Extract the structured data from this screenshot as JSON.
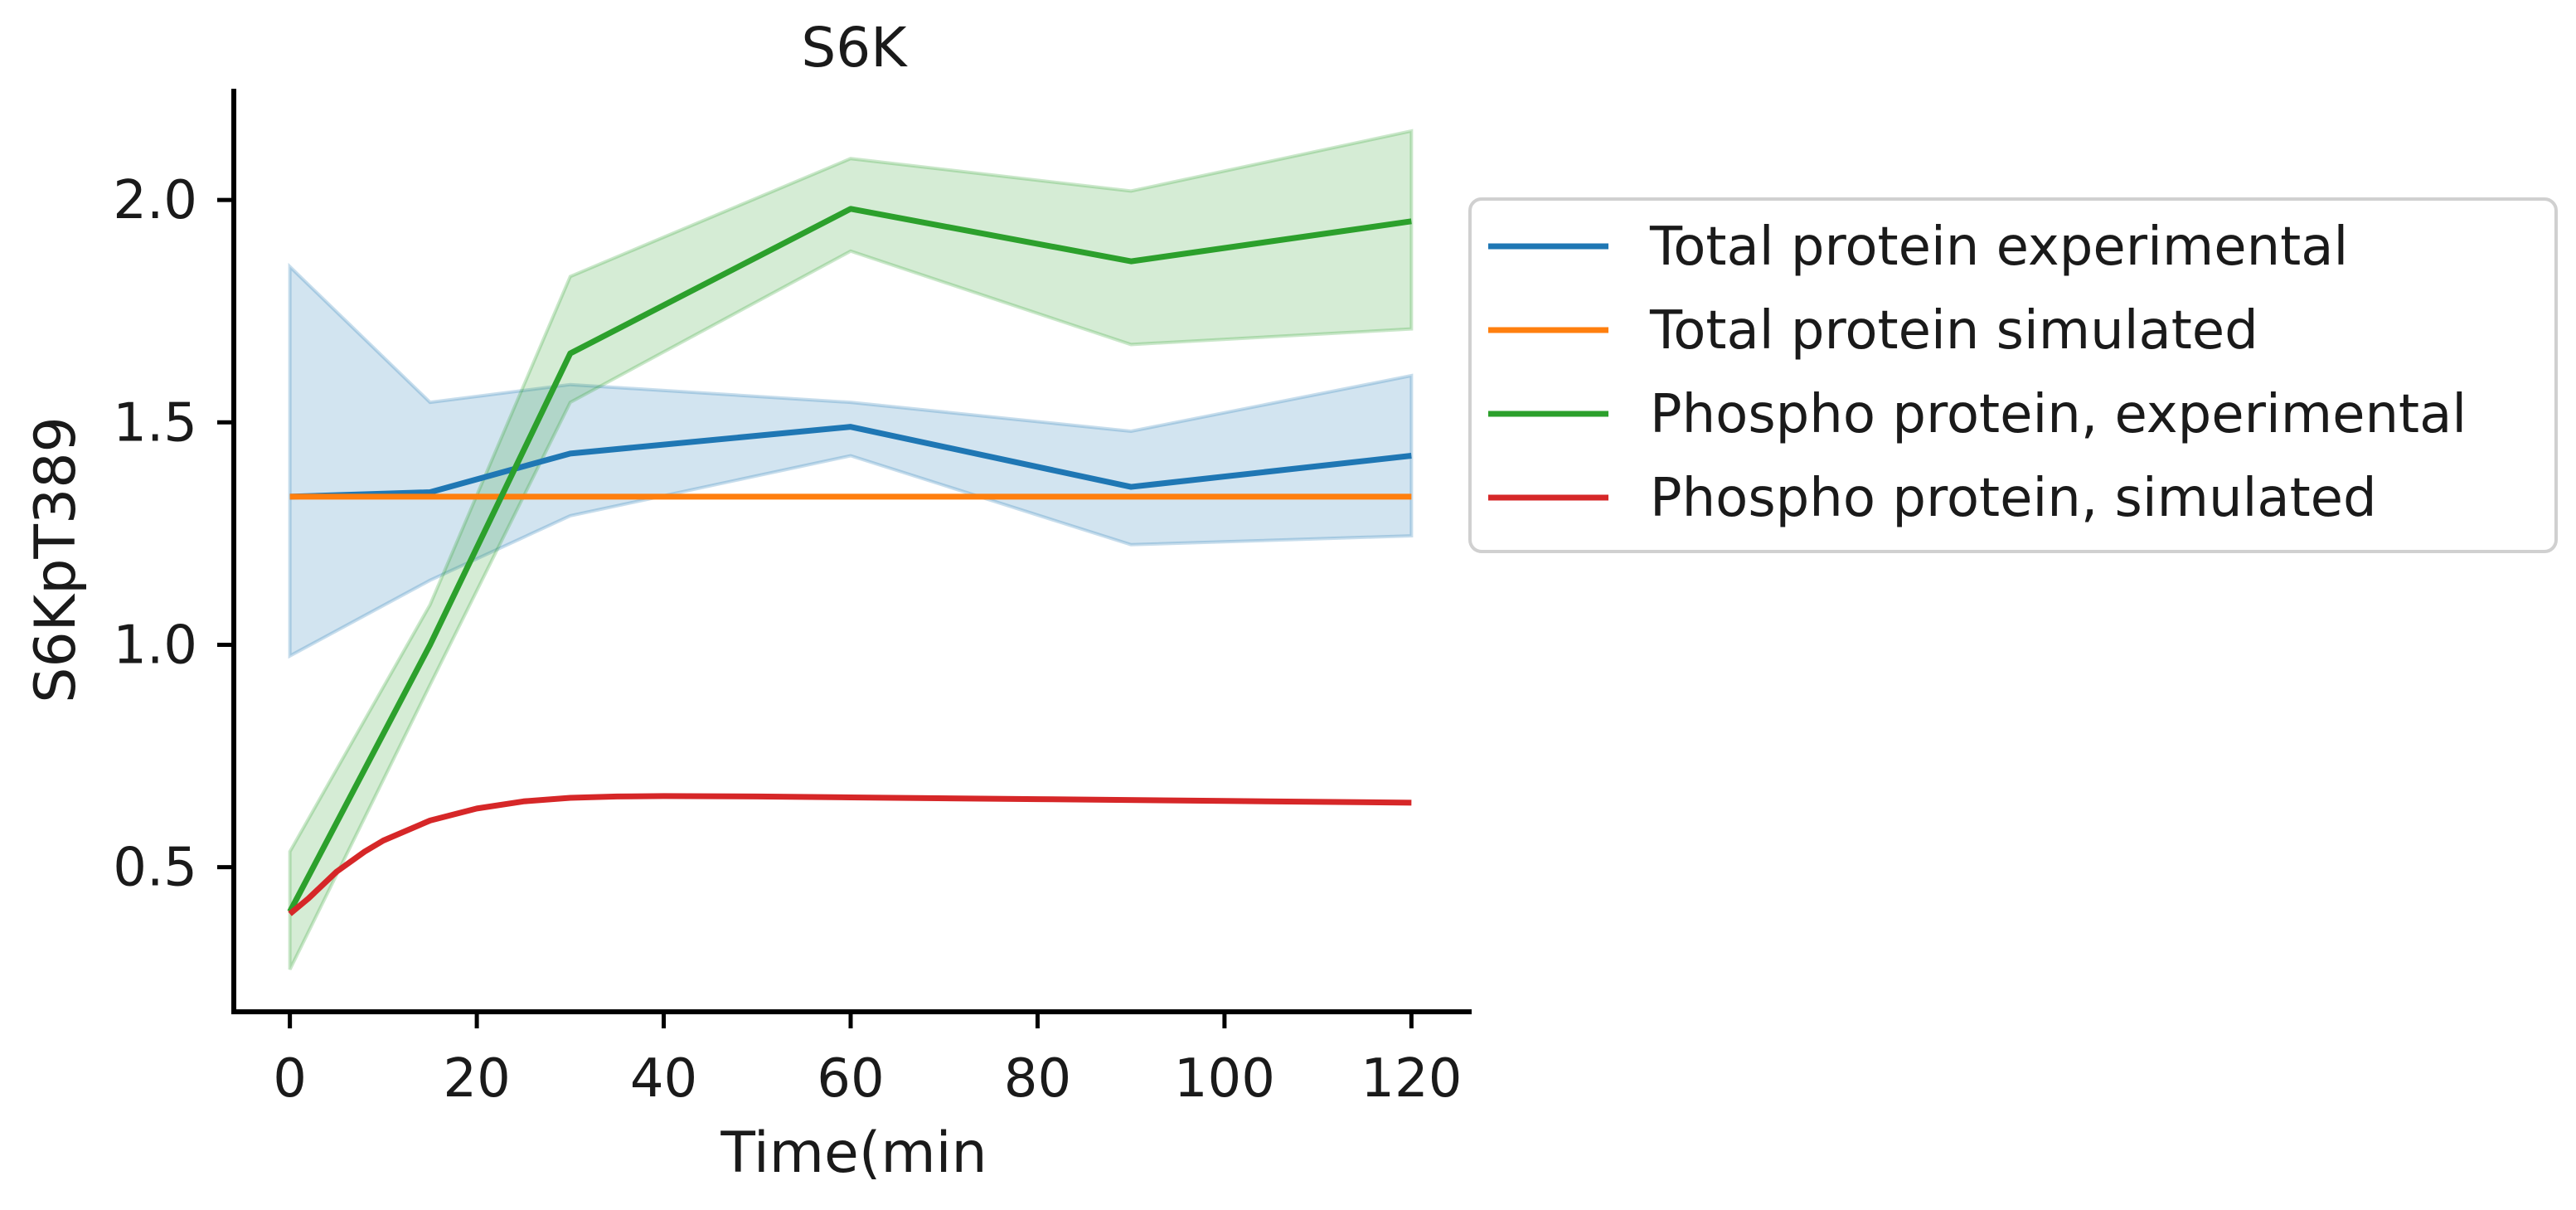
{
  "chart_data": {
    "type": "line",
    "title": "S6K",
    "xlabel": "Time(min",
    "ylabel": "S6KpT389",
    "xlim": [
      -6,
      126
    ],
    "ylim": [
      0.175,
      2.25
    ],
    "grid": false,
    "legend_position": "outside right, top",
    "x_ticks": [
      0,
      20,
      40,
      60,
      80,
      100,
      120
    ],
    "x_tick_labels": [
      "0",
      "20",
      "40",
      "60",
      "80",
      "100",
      "120"
    ],
    "y_ticks": [
      0.5,
      1.0,
      1.5,
      2.0
    ],
    "y_tick_labels": [
      "0.5",
      "1.0",
      "1.5",
      "2.0"
    ],
    "series": [
      {
        "name": "Total protein experimental",
        "color": "#1f77b4",
        "x": [
          0,
          15,
          30,
          60,
          90,
          120
        ],
        "values": [
          1.333,
          1.343,
          1.43,
          1.49,
          1.355,
          1.425
        ],
        "band_upper": [
          1.85,
          1.545,
          1.585,
          1.545,
          1.48,
          1.605
        ],
        "band_lower": [
          0.975,
          1.145,
          1.29,
          1.425,
          1.225,
          1.245
        ]
      },
      {
        "name": "Total protein simulated",
        "color": "#ff7f0e",
        "x": [
          0,
          120
        ],
        "values": [
          1.333,
          1.333
        ]
      },
      {
        "name": "Phospho protein, experimental",
        "color": "#2ca02c",
        "x": [
          0,
          15,
          30,
          60,
          90,
          120
        ],
        "values": [
          0.4,
          1.0,
          1.655,
          1.98,
          1.862,
          1.952
        ],
        "band_upper": [
          0.535,
          1.09,
          1.828,
          2.093,
          2.02,
          2.155
        ],
        "band_lower": [
          0.27,
          0.91,
          1.545,
          1.885,
          1.675,
          1.71
        ]
      },
      {
        "name": "Phospho protein, simulated",
        "color": "#d62728",
        "x": [
          0,
          2,
          5,
          8,
          10,
          15,
          20,
          25,
          30,
          35,
          40,
          50,
          60,
          80,
          100,
          120
        ],
        "values": [
          0.395,
          0.43,
          0.49,
          0.535,
          0.56,
          0.605,
          0.632,
          0.648,
          0.656,
          0.659,
          0.66,
          0.659,
          0.657,
          0.653,
          0.649,
          0.645
        ]
      }
    ]
  }
}
